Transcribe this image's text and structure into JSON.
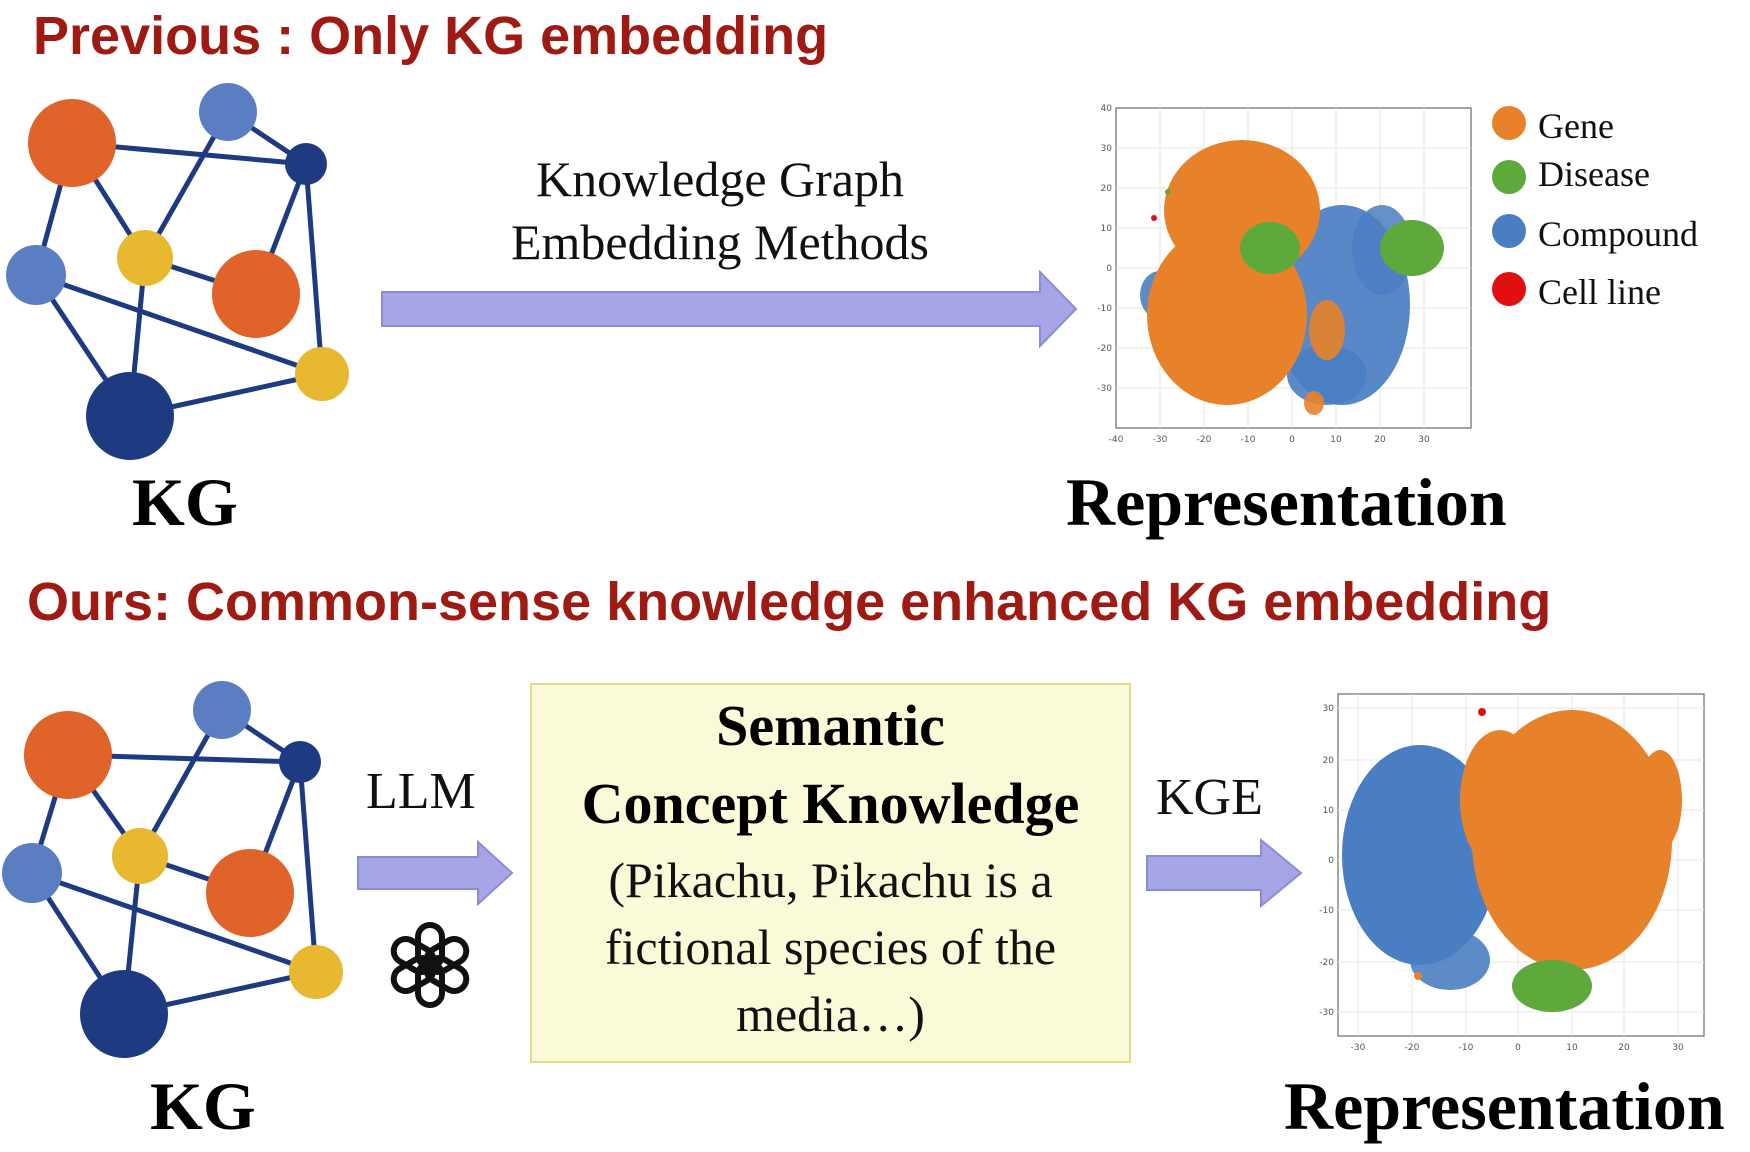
{
  "top_section": {
    "heading": "Previous : Only KG embedding",
    "kg_label": "KG",
    "method_line1": "Knowledge Graph",
    "method_line2": "Embedding Methods",
    "representation_label": "Representation",
    "plot_x_ticks": [
      "-40",
      "-30",
      "-20",
      "-10",
      "0",
      "10",
      "20",
      "30"
    ],
    "plot_y_ticks": [
      "40",
      "30",
      "20",
      "10",
      "0",
      "-10",
      "-20",
      "-30"
    ]
  },
  "legend": {
    "items": [
      {
        "label": "Gene",
        "color": "#e8822a"
      },
      {
        "label": "Disease",
        "color": "#5ea93c"
      },
      {
        "label": "Compound",
        "color": "#4a7ec2"
      },
      {
        "label": "Cell line",
        "color": "#e01010"
      }
    ]
  },
  "bottom_section": {
    "heading": "Ours: Common-sense knowledge enhanced KG embedding",
    "kg_label": "KG",
    "llm_label": "LLM",
    "kge_label": "KGE",
    "concept_title_line1": "Semantic",
    "concept_title_line2": "Concept Knowledge",
    "concept_body_line1": "(Pikachu, Pikachu is a",
    "concept_body_line2": "fictional species of the",
    "concept_body_line3": "media…)",
    "representation_label": "Representation",
    "plot_x_ticks": [
      "-30",
      "-20",
      "-10",
      "0",
      "10",
      "20",
      "30"
    ],
    "plot_y_ticks": [
      "30",
      "20",
      "10",
      "0",
      "-10",
      "-20",
      "-30"
    ]
  },
  "colors": {
    "heading": "#a01a14",
    "arrow": "#a6a6e6",
    "concept_box_fill": "#fafad9",
    "gene": "#e8822a",
    "disease": "#5ea93c",
    "compound": "#4a7ec2",
    "cell_line": "#e01010",
    "node_orange": "#e0632a",
    "node_blue_light": "#5b7ec2",
    "node_blue_dark": "#1e3a80",
    "node_yellow": "#e8b830",
    "edge": "#1e3a80"
  },
  "icons": {
    "llm_logo": "openai-logo-icon"
  }
}
